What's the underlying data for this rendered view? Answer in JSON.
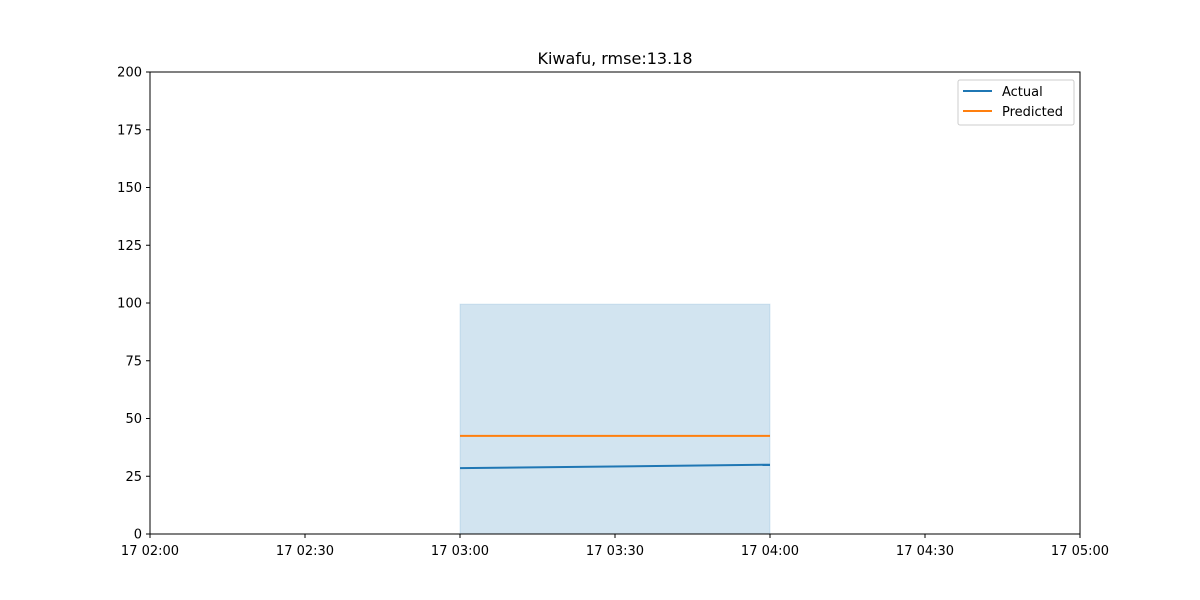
{
  "chart_data": {
    "type": "line",
    "title": "Kiwafu, rmse:13.18",
    "xlabel": "",
    "ylabel": "",
    "xlim": [
      "17 02:00",
      "17 05:00"
    ],
    "ylim": [
      0,
      200
    ],
    "x_ticks": [
      "17 02:00",
      "17 02:30",
      "17 03:00",
      "17 03:30",
      "17 04:00",
      "17 04:30",
      "17 05:00"
    ],
    "y_ticks": [
      0,
      25,
      50,
      75,
      100,
      125,
      150,
      175,
      200
    ],
    "grid": false,
    "legend_position": "top-right",
    "x": [
      "17 03:00",
      "17 04:00"
    ],
    "series": [
      {
        "name": "Actual",
        "color": "#1f77b4",
        "values": [
          28.5,
          30.0
        ]
      },
      {
        "name": "Predicted",
        "color": "#ff7f0e",
        "values": [
          42.5,
          42.5
        ]
      }
    ],
    "band": {
      "color": "#1f77b4",
      "opacity": 0.2,
      "x": [
        "17 03:00",
        "17 04:00"
      ],
      "lower": [
        0,
        0
      ],
      "upper": [
        99.5,
        99.5
      ]
    }
  }
}
